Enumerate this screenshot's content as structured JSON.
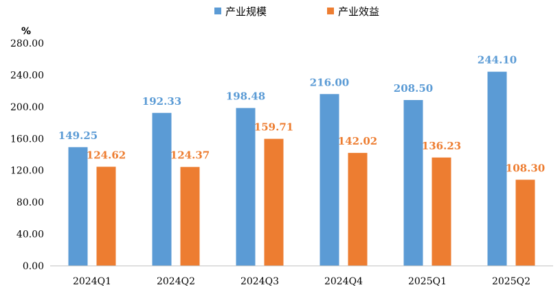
{
  "chart_data": {
    "type": "bar",
    "title": "",
    "xlabel": "",
    "ylabel": "%",
    "ylim": [
      0,
      280
    ],
    "yticks": [
      "0.00",
      "40.00",
      "80.00",
      "120.00",
      "160.00",
      "200.00",
      "240.00",
      "280.00"
    ],
    "categories": [
      "2024Q1",
      "2024Q2",
      "2024Q3",
      "2024Q4",
      "2025Q1",
      "2025Q2"
    ],
    "series": [
      {
        "name": "产业规模",
        "color": "#5b9bd5",
        "values": [
          149.25,
          192.33,
          198.48,
          216.0,
          208.5,
          244.1
        ],
        "labels": [
          "149.25",
          "192.33",
          "198.48",
          "216.00",
          "208.50",
          "244.10"
        ]
      },
      {
        "name": "产业效益",
        "color": "#ed7d31",
        "values": [
          124.62,
          124.37,
          159.71,
          142.02,
          136.23,
          108.3
        ],
        "labels": [
          "124.62",
          "124.37",
          "159.71",
          "142.02",
          "136.23",
          "108.30"
        ]
      }
    ],
    "grid": false,
    "legend_position": "top-center"
  }
}
